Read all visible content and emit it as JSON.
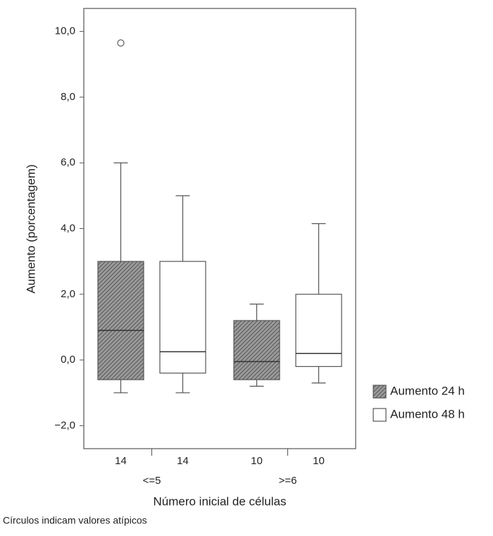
{
  "chart_data": {
    "type": "box",
    "ylabel": "Aumento (porcentagem)",
    "xlabel": "Número inicial de células",
    "footnote": "Círculos indicam valores atípicos",
    "categories": [
      "<=5",
      ">=6"
    ],
    "ylim": [
      -2.7,
      10.7
    ],
    "yticks": [
      {
        "value": -2,
        "label": "−2,0"
      },
      {
        "value": 0,
        "label": "0,0"
      },
      {
        "value": 2,
        "label": "2,0"
      },
      {
        "value": 4,
        "label": "4,0"
      },
      {
        "value": 6,
        "label": "6,0"
      },
      {
        "value": 8,
        "label": "8,0"
      },
      {
        "value": 10,
        "label": "10,0"
      }
    ],
    "legend": "right",
    "series": [
      {
        "name": "Aumento 24 h",
        "color": "#8c8c8c",
        "hatch": true,
        "n": [
          14,
          10
        ],
        "boxes": [
          {
            "whislo": -1.0,
            "q1": -0.6,
            "med": 0.9,
            "q3": 3.0,
            "whishi": 6.0,
            "fliers": [
              9.65
            ]
          },
          {
            "whislo": -0.8,
            "q1": -0.6,
            "med": -0.05,
            "q3": 1.2,
            "whishi": 1.7,
            "fliers": []
          }
        ]
      },
      {
        "name": "Aumento 48 h",
        "color": "#ffffff",
        "hatch": false,
        "n": [
          14,
          10
        ],
        "boxes": [
          {
            "whislo": -1.0,
            "q1": -0.4,
            "med": 0.25,
            "q3": 3.0,
            "whishi": 5.0,
            "fliers": []
          },
          {
            "whislo": -0.7,
            "q1": -0.2,
            "med": 0.2,
            "q3": 2.0,
            "whishi": 4.15,
            "fliers": []
          }
        ]
      }
    ]
  }
}
